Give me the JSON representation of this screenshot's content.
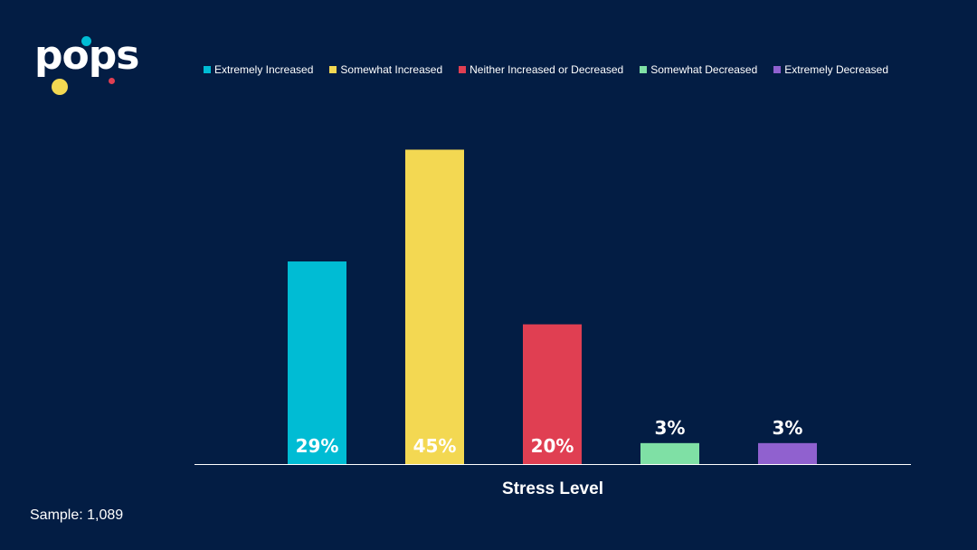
{
  "logo": {
    "text": "pops"
  },
  "sample": "Sample: 1,089",
  "chart_data": {
    "type": "bar",
    "xlabel": "Stress Level",
    "categories": [
      "Extremely Increased",
      "Somewhat Increased",
      "Neither Increased or Decreased",
      "Somewhat Decreased",
      "Extremely Decreased"
    ],
    "values": [
      29,
      45,
      20,
      3,
      3
    ],
    "data_labels": [
      "29%",
      "45%",
      "20%",
      "3%",
      "3%"
    ],
    "colors": [
      "#00bcd4",
      "#f3d852",
      "#e03f52",
      "#7fe0a5",
      "#9061cf"
    ],
    "ylim": [
      0,
      47
    ],
    "grid": false,
    "legend": "top"
  }
}
